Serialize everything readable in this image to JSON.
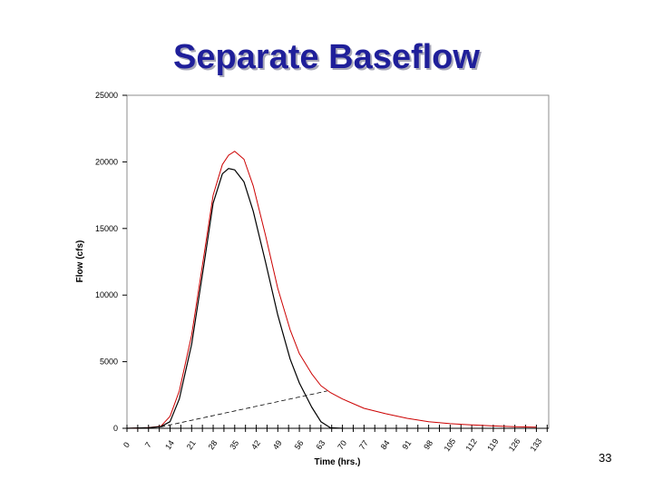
{
  "slide": {
    "title": "Separate Baseflow",
    "number": "33"
  },
  "colors": {
    "title": "#1f1f9a",
    "total_flow": "#cc0000",
    "direct_runoff": "#000000",
    "axes": "#000000"
  },
  "chart_data": {
    "type": "line",
    "xlabel": "Time (hrs.)",
    "ylabel": "Flow (cfs)",
    "xlim": [
      0,
      137
    ],
    "ylim": [
      0,
      25000
    ],
    "x_ticks": [
      0,
      7,
      14,
      21,
      28,
      35,
      42,
      49,
      56,
      63,
      70,
      77,
      84,
      91,
      98,
      105,
      112,
      119,
      126,
      133
    ],
    "y_ticks": [
      0,
      5000,
      10000,
      15000,
      20000,
      25000
    ],
    "grid": false,
    "legend": "none",
    "series": [
      {
        "x": [
          0,
          7,
          11,
          14,
          17,
          21,
          25,
          28,
          31,
          33,
          35,
          38,
          41,
          45,
          49,
          53,
          56,
          60,
          63,
          66,
          70,
          77,
          84,
          91,
          98,
          105,
          112,
          119,
          126,
          133
        ],
        "y": [
          0,
          50,
          150,
          900,
          2800,
          7000,
          13000,
          17500,
          19800,
          20500,
          20800,
          20200,
          18200,
          14500,
          10500,
          7400,
          5600,
          4100,
          3200,
          2700,
          2200,
          1500,
          1100,
          750,
          500,
          350,
          250,
          180,
          120,
          80
        ]
      },
      {
        "x": [
          0,
          7,
          11,
          14,
          17,
          21,
          25,
          28,
          31,
          33,
          35,
          38,
          41,
          45,
          49,
          53,
          56,
          60,
          63,
          66,
          70
        ],
        "y": [
          0,
          50,
          120,
          500,
          2200,
          6300,
          12300,
          16900,
          19100,
          19500,
          19400,
          18500,
          16300,
          12500,
          8500,
          5200,
          3400,
          1600,
          500,
          50,
          0
        ]
      },
      {
        "x": [
          11,
          65
        ],
        "y": [
          100,
          2800
        ]
      }
    ]
  }
}
